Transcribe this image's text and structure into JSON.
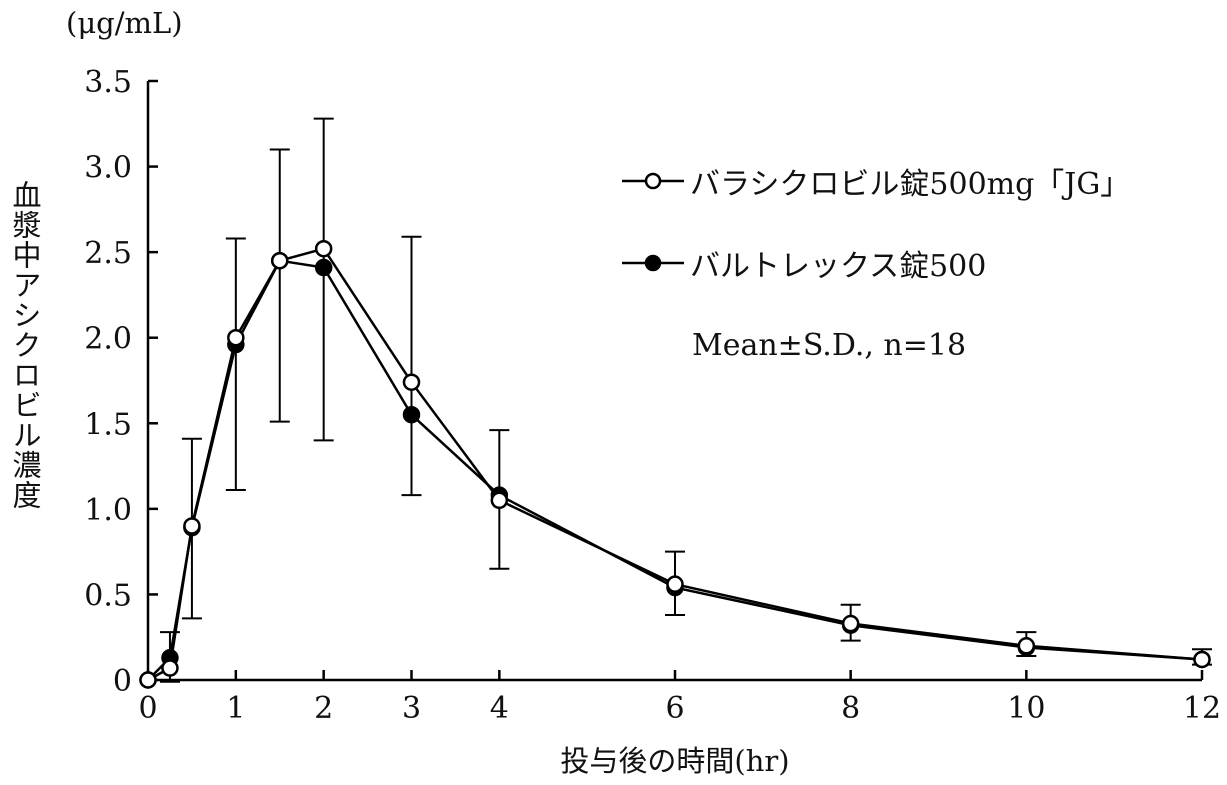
{
  "chart_data": {
    "type": "line",
    "title": "",
    "xlabel": "投与後の時間(hr)",
    "ylabel": "血漿中アシクロビル濃度",
    "yunit": "(μg/mL)",
    "xlim": [
      0,
      12
    ],
    "ylim": [
      0,
      3.5
    ],
    "xticks": [
      0,
      1,
      2,
      3,
      4,
      6,
      8,
      10,
      12
    ],
    "xtick_labels": [
      "0",
      "1",
      "2",
      "3",
      "4",
      "6",
      "8",
      "10",
      "12"
    ],
    "yticks": [
      0,
      0.5,
      1.0,
      1.5,
      2.0,
      2.5,
      3.0,
      3.5
    ],
    "ytick_labels": [
      "0",
      "0.5",
      "1.0",
      "1.5",
      "2.0",
      "2.5",
      "3.0",
      "3.5"
    ],
    "grid": false,
    "legend_position": "top-right",
    "annotation": "Mean±S.D., n=18",
    "x": [
      0,
      0.25,
      0.5,
      1,
      1.5,
      2,
      3,
      4,
      6,
      8,
      10,
      12
    ],
    "series": [
      {
        "name": "バラシクロビル錠500mg「JG」",
        "marker": "open-circle",
        "values": [
          0,
          0.07,
          0.9,
          2.0,
          2.45,
          2.52,
          1.74,
          1.05,
          0.56,
          0.33,
          0.2,
          0.12
        ]
      },
      {
        "name": "バルトレックス錠500",
        "marker": "filled-circle",
        "values": [
          0,
          0.13,
          0.89,
          1.96,
          2.45,
          2.41,
          1.55,
          1.08,
          0.54,
          0.32,
          0.19,
          0.12
        ]
      }
    ],
    "error_bars": {
      "x": [
        0.25,
        0.5,
        1,
        1.5,
        2,
        3,
        4,
        6,
        8,
        10,
        12
      ],
      "upper": [
        0.28,
        1.41,
        2.58,
        3.1,
        3.28,
        2.59,
        1.46,
        0.75,
        0.44,
        0.28,
        0.18
      ],
      "lower": [
        -0.01,
        0.36,
        1.11,
        1.51,
        1.4,
        1.08,
        0.65,
        0.38,
        0.23,
        0.14,
        0.09
      ]
    }
  }
}
